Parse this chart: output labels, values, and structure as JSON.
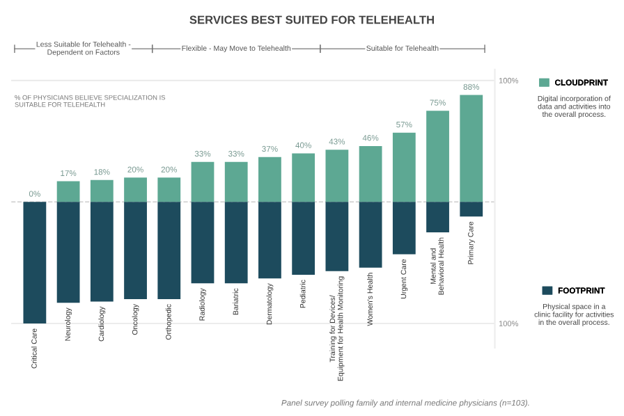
{
  "chart_data": {
    "type": "bar",
    "title": "SERVICES BEST SUITED FOR TELEHEALTH",
    "ylabel": "% OF PHYSICIANS BELIEVE SPECIALIZATION IS SUITABLE FOR TELEHEALTH",
    "categories": [
      "Critical Care",
      "Neurology",
      "Cardiology",
      "Oncology",
      "Orthopedic",
      "Radiology",
      "Bariatric",
      "Dermatology",
      "Pediatric",
      "Training for Devices/\nEquipment for Health Monitoring",
      "Women's Health",
      "Urgent Care",
      "Mental and\nBehavioral Health",
      "Primary Care"
    ],
    "stacked": true,
    "series": [
      {
        "name": "CLOUDPRINT",
        "color": "#5da893",
        "values": [
          0,
          17,
          18,
          20,
          20,
          33,
          33,
          37,
          40,
          43,
          46,
          57,
          75,
          88
        ],
        "value_labels": [
          "0%",
          "17%",
          "18%",
          "20%",
          "20%",
          "33%",
          "33%",
          "37%",
          "40%",
          "43%",
          "46%",
          "57%",
          "75%",
          "88%"
        ]
      },
      {
        "name": "FOOTPRINT",
        "color": "#1d4b5d",
        "values": [
          -100,
          -83,
          -82,
          -80,
          -80,
          -67,
          -67,
          -63,
          -60,
          -57,
          -54,
          -43,
          -25,
          -12
        ]
      }
    ],
    "ylim": [
      -120,
      109
    ],
    "yticks": [
      {
        "value": 100,
        "label": "100%"
      },
      {
        "value": -100,
        "label": "100%"
      }
    ],
    "grid": "y",
    "ref_lines": [
      {
        "axis": "y",
        "value": 0,
        "line_style": "dashed",
        "color": "#cccccc"
      }
    ],
    "legend": "right",
    "annotations": [
      "Less Suitable for Telehealth -\nDependent on Factors",
      "Flexible - May Move to Telehealth",
      "Suitable for Telehealth",
      "Digital incorporation of\ndata and activities into\nthe overall process.",
      "Physical space in a\nclinic facility for activities\nin the overall process.",
      "Panel survey polling family and internal medicine physicians (n=103)."
    ]
  }
}
